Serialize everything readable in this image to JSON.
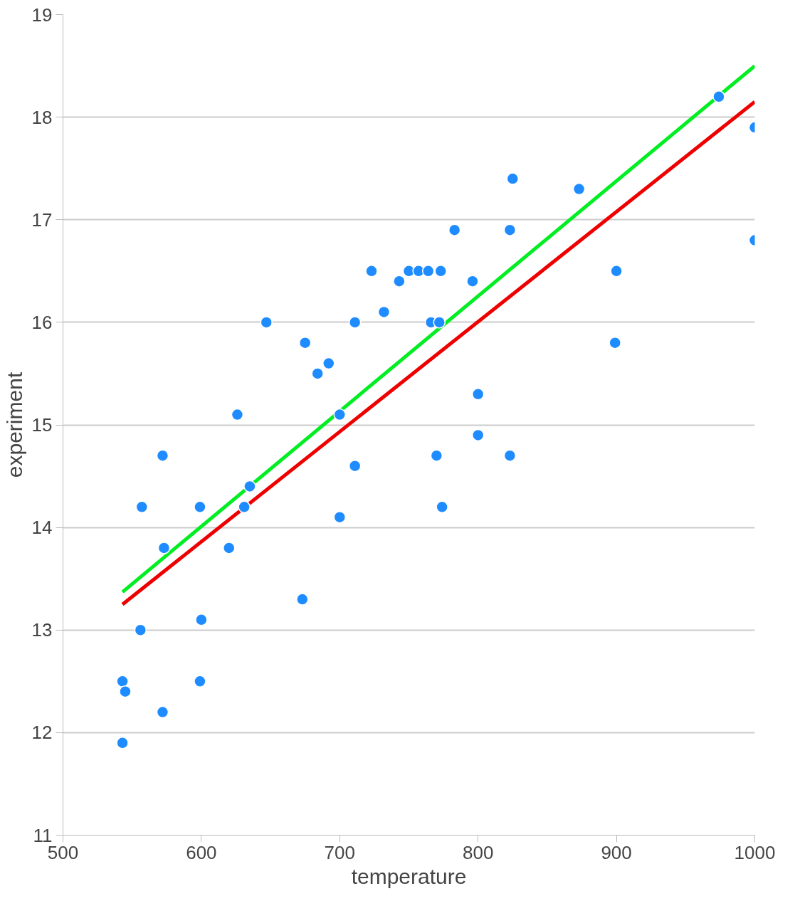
{
  "chart_data": {
    "type": "scatter",
    "xlabel": "temperature",
    "ylabel": "experiment",
    "xlim": [
      500,
      1000
    ],
    "xticks": [
      500,
      600,
      700,
      800,
      900,
      1000
    ],
    "ylim": [
      11,
      19
    ],
    "yticks": [
      11,
      12,
      13,
      14,
      15,
      16,
      17,
      18,
      19
    ],
    "grid": "y",
    "series": [
      {
        "marker": "circle",
        "color": "#1e8cff",
        "x": [
          543,
          543,
          545,
          556,
          557,
          572,
          572,
          573,
          599,
          599,
          600,
          620,
          626,
          631,
          635,
          647,
          673,
          675,
          684,
          692,
          700,
          700,
          711,
          711,
          723,
          732,
          743,
          750,
          757,
          764,
          766,
          772,
          770,
          773,
          774,
          783,
          796,
          800,
          800,
          823,
          823,
          825,
          873,
          899,
          900,
          974,
          1000,
          1000
        ],
        "values": [
          11.9,
          12.5,
          12.4,
          13.0,
          14.2,
          14.7,
          12.2,
          13.8,
          14.2,
          12.5,
          13.1,
          13.8,
          15.1,
          14.2,
          14.4,
          16.0,
          13.3,
          15.8,
          15.5,
          15.6,
          15.1,
          14.1,
          16.0,
          14.6,
          16.5,
          16.1,
          16.4,
          16.5,
          16.5,
          16.5,
          16.0,
          16.0,
          14.7,
          16.5,
          14.2,
          16.9,
          16.4,
          15.3,
          14.9,
          16.9,
          14.7,
          17.4,
          17.3,
          15.8,
          16.5,
          18.2,
          17.9,
          16.8
        ]
      },
      {
        "type": "line",
        "color": "#00ee22",
        "x": [
          543,
          1000
        ],
        "values": [
          13.37,
          18.5
        ]
      },
      {
        "type": "line",
        "color": "#ee0000",
        "x": [
          543,
          1000
        ],
        "values": [
          13.25,
          18.15
        ]
      }
    ]
  }
}
